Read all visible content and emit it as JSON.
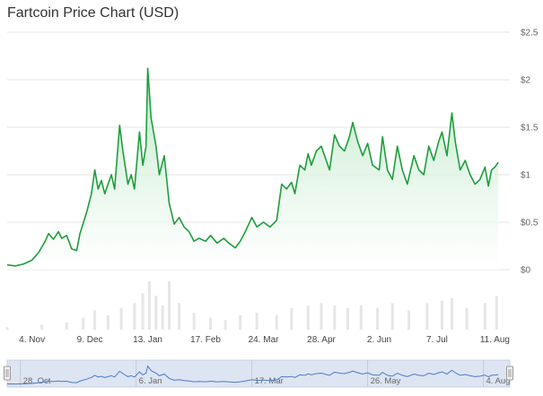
{
  "chart_data": {
    "type": "area",
    "title": "Fartcoin Price Chart (USD)",
    "xlabel": "",
    "ylabel": "",
    "ylim": [
      0,
      2.5
    ],
    "y_ticks": [
      "$0",
      "$0.5",
      "$1",
      "$1.5",
      "$2",
      "$2.5"
    ],
    "y_tick_values": [
      0,
      0.5,
      1,
      1.5,
      2,
      2.5
    ],
    "x_range": [
      "2024-10-20",
      "2025-08-20"
    ],
    "x_ticks": [
      {
        "label": "4. Nov",
        "date": "2024-11-04"
      },
      {
        "label": "9. Dec",
        "date": "2024-12-09"
      },
      {
        "label": "13. Jan",
        "date": "2025-01-13"
      },
      {
        "label": "17. Feb",
        "date": "2025-02-17"
      },
      {
        "label": "24. Mar",
        "date": "2025-03-24"
      },
      {
        "label": "28. Apr",
        "date": "2025-04-28"
      },
      {
        "label": "2. Jun",
        "date": "2025-06-02"
      },
      {
        "label": "7. Jul",
        "date": "2025-07-07"
      },
      {
        "label": "11. Aug",
        "date": "2025-08-11"
      }
    ],
    "navigator_ticks": [
      {
        "label": "28. Oct",
        "date": "2024-10-28"
      },
      {
        "label": "6. Jan",
        "date": "2025-01-06"
      },
      {
        "label": "17. Mar",
        "date": "2025-03-17"
      },
      {
        "label": "26. May",
        "date": "2025-05-26"
      },
      {
        "label": "4. Aug",
        "date": "2025-08-04"
      }
    ],
    "grid": true,
    "legend": "none",
    "colors": {
      "line": "#1e9e3c",
      "area_top": "#c9ecd1",
      "volume": "#e6e6e6",
      "navigator_line": "#4e7bc4",
      "navigator_bg": "#dde4f2"
    },
    "series": [
      {
        "values": [
          [
            "2024-10-20",
            0.05
          ],
          [
            "2024-10-25",
            0.04
          ],
          [
            "2024-10-30",
            0.06
          ],
          [
            "2024-11-04",
            0.1
          ],
          [
            "2024-11-08",
            0.18
          ],
          [
            "2024-11-12",
            0.3
          ],
          [
            "2024-11-14",
            0.38
          ],
          [
            "2024-11-17",
            0.32
          ],
          [
            "2024-11-20",
            0.4
          ],
          [
            "2024-11-22",
            0.33
          ],
          [
            "2024-11-25",
            0.36
          ],
          [
            "2024-11-28",
            0.22
          ],
          [
            "2024-12-01",
            0.2
          ],
          [
            "2024-12-03",
            0.38
          ],
          [
            "2024-12-07",
            0.6
          ],
          [
            "2024-12-10",
            0.8
          ],
          [
            "2024-12-12",
            1.05
          ],
          [
            "2024-12-14",
            0.85
          ],
          [
            "2024-12-16",
            0.94
          ],
          [
            "2024-12-18",
            0.8
          ],
          [
            "2024-12-22",
            1.0
          ],
          [
            "2024-12-24",
            0.85
          ],
          [
            "2024-12-27",
            1.52
          ],
          [
            "2024-12-29",
            1.25
          ],
          [
            "2025-01-01",
            0.9
          ],
          [
            "2025-01-03",
            1.0
          ],
          [
            "2025-01-05",
            0.85
          ],
          [
            "2025-01-08",
            1.45
          ],
          [
            "2025-01-10",
            1.1
          ],
          [
            "2025-01-12",
            1.3
          ],
          [
            "2025-01-13",
            2.12
          ],
          [
            "2025-01-15",
            1.6
          ],
          [
            "2025-01-18",
            1.3
          ],
          [
            "2025-01-20",
            1.0
          ],
          [
            "2025-01-23",
            1.2
          ],
          [
            "2025-01-26",
            0.7
          ],
          [
            "2025-01-29",
            0.48
          ],
          [
            "2025-02-01",
            0.55
          ],
          [
            "2025-02-04",
            0.45
          ],
          [
            "2025-02-07",
            0.4
          ],
          [
            "2025-02-10",
            0.3
          ],
          [
            "2025-02-13",
            0.33
          ],
          [
            "2025-02-17",
            0.3
          ],
          [
            "2025-02-20",
            0.36
          ],
          [
            "2025-02-24",
            0.28
          ],
          [
            "2025-02-28",
            0.33
          ],
          [
            "2025-03-03",
            0.28
          ],
          [
            "2025-03-07",
            0.23
          ],
          [
            "2025-03-10",
            0.3
          ],
          [
            "2025-03-13",
            0.4
          ],
          [
            "2025-03-17",
            0.55
          ],
          [
            "2025-03-20",
            0.45
          ],
          [
            "2025-03-24",
            0.5
          ],
          [
            "2025-03-28",
            0.45
          ],
          [
            "2025-04-01",
            0.52
          ],
          [
            "2025-04-04",
            0.9
          ],
          [
            "2025-04-07",
            0.85
          ],
          [
            "2025-04-10",
            0.92
          ],
          [
            "2025-04-12",
            0.8
          ],
          [
            "2025-04-15",
            1.1
          ],
          [
            "2025-04-18",
            1.05
          ],
          [
            "2025-04-20",
            1.22
          ],
          [
            "2025-04-22",
            1.1
          ],
          [
            "2025-04-25",
            1.25
          ],
          [
            "2025-04-28",
            1.3
          ],
          [
            "2025-05-01",
            1.15
          ],
          [
            "2025-05-03",
            1.05
          ],
          [
            "2025-05-06",
            1.42
          ],
          [
            "2025-05-09",
            1.3
          ],
          [
            "2025-05-12",
            1.25
          ],
          [
            "2025-05-15",
            1.4
          ],
          [
            "2025-05-17",
            1.55
          ],
          [
            "2025-05-20",
            1.35
          ],
          [
            "2025-05-23",
            1.2
          ],
          [
            "2025-05-26",
            1.33
          ],
          [
            "2025-05-29",
            1.1
          ],
          [
            "2025-06-02",
            1.05
          ],
          [
            "2025-06-04",
            1.4
          ],
          [
            "2025-06-07",
            1.05
          ],
          [
            "2025-06-10",
            0.95
          ],
          [
            "2025-06-13",
            1.3
          ],
          [
            "2025-06-16",
            1.05
          ],
          [
            "2025-06-19",
            0.9
          ],
          [
            "2025-06-23",
            1.2
          ],
          [
            "2025-06-26",
            1.05
          ],
          [
            "2025-06-29",
            1.0
          ],
          [
            "2025-07-02",
            1.3
          ],
          [
            "2025-07-05",
            1.15
          ],
          [
            "2025-07-08",
            1.35
          ],
          [
            "2025-07-10",
            1.45
          ],
          [
            "2025-07-13",
            1.2
          ],
          [
            "2025-07-16",
            1.65
          ],
          [
            "2025-07-18",
            1.35
          ],
          [
            "2025-07-21",
            1.05
          ],
          [
            "2025-07-24",
            1.15
          ],
          [
            "2025-07-27",
            1.0
          ],
          [
            "2025-07-30",
            0.9
          ],
          [
            "2025-08-02",
            0.95
          ],
          [
            "2025-08-05",
            1.08
          ],
          [
            "2025-08-07",
            0.88
          ],
          [
            "2025-08-09",
            1.05
          ],
          [
            "2025-08-11",
            1.08
          ],
          [
            "2025-08-13",
            1.13
          ]
        ]
      }
    ],
    "volume": {
      "scale": "relative (no axis printed)",
      "values": [
        [
          "2024-10-20",
          0.05
        ],
        [
          "2024-11-10",
          0.1
        ],
        [
          "2024-11-25",
          0.15
        ],
        [
          "2024-12-05",
          0.25
        ],
        [
          "2024-12-12",
          0.4
        ],
        [
          "2024-12-20",
          0.3
        ],
        [
          "2024-12-28",
          0.45
        ],
        [
          "2025-01-05",
          0.55
        ],
        [
          "2025-01-10",
          0.75
        ],
        [
          "2025-01-14",
          1.0
        ],
        [
          "2025-01-18",
          0.7
        ],
        [
          "2025-01-22",
          0.5
        ],
        [
          "2025-01-26",
          1.0
        ],
        [
          "2025-02-01",
          0.55
        ],
        [
          "2025-02-10",
          0.35
        ],
        [
          "2025-02-20",
          0.25
        ],
        [
          "2025-03-01",
          0.2
        ],
        [
          "2025-03-10",
          0.3
        ],
        [
          "2025-03-20",
          0.35
        ],
        [
          "2025-04-01",
          0.3
        ],
        [
          "2025-04-10",
          0.45
        ],
        [
          "2025-04-20",
          0.5
        ],
        [
          "2025-04-28",
          0.55
        ],
        [
          "2025-05-06",
          0.5
        ],
        [
          "2025-05-14",
          0.45
        ],
        [
          "2025-05-22",
          0.5
        ],
        [
          "2025-06-01",
          0.45
        ],
        [
          "2025-06-10",
          0.55
        ],
        [
          "2025-06-20",
          0.4
        ],
        [
          "2025-07-01",
          0.55
        ],
        [
          "2025-07-10",
          0.6
        ],
        [
          "2025-07-16",
          0.65
        ],
        [
          "2025-07-25",
          0.45
        ],
        [
          "2025-08-05",
          0.55
        ],
        [
          "2025-08-12",
          0.7
        ]
      ]
    }
  }
}
